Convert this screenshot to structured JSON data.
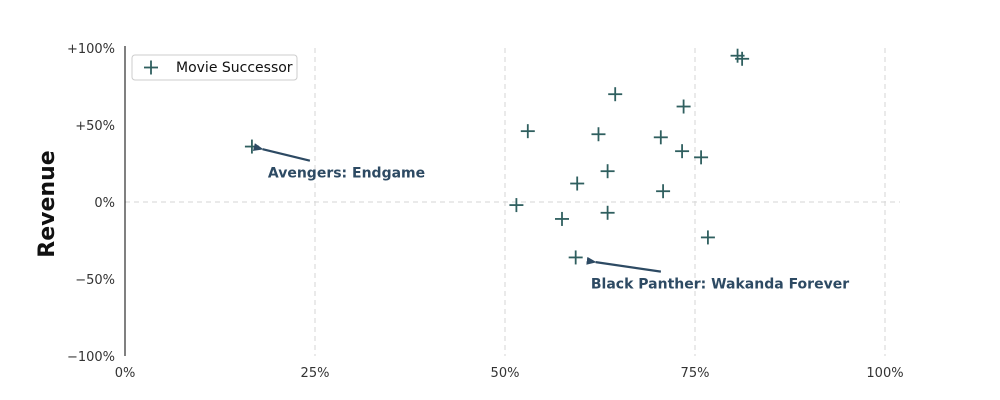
{
  "chart_data": {
    "type": "scatter",
    "title": "",
    "xlabel": "",
    "ylabel": "Revenue",
    "xlim": [
      0,
      1.02
    ],
    "ylim": [
      -1,
      1
    ],
    "x_ticks": [
      0,
      0.25,
      0.5,
      0.75,
      1.0
    ],
    "x_tick_labels": [
      "0%",
      "25%",
      "50%",
      "75%",
      "100%"
    ],
    "y_ticks": [
      -1,
      -0.5,
      0,
      0.5,
      1
    ],
    "y_tick_labels": [
      "−100%",
      "−50%",
      "0%",
      "+50%",
      "+100%"
    ],
    "grid": "x-dashed",
    "zero_line": "dashed",
    "legend": {
      "placement": "top-left",
      "entries": [
        "Movie Successor"
      ]
    },
    "marker": "plus",
    "color": "#2f5f5f",
    "series": [
      {
        "name": "Movie Successor",
        "points": [
          {
            "x": 0.167,
            "y": 0.36
          },
          {
            "x": 0.53,
            "y": 0.46
          },
          {
            "x": 0.515,
            "y": -0.02
          },
          {
            "x": 0.575,
            "y": -0.11
          },
          {
            "x": 0.595,
            "y": 0.12
          },
          {
            "x": 0.593,
            "y": -0.36
          },
          {
            "x": 0.623,
            "y": 0.44
          },
          {
            "x": 0.635,
            "y": 0.2
          },
          {
            "x": 0.635,
            "y": -0.07
          },
          {
            "x": 0.645,
            "y": 0.7
          },
          {
            "x": 0.705,
            "y": 0.42
          },
          {
            "x": 0.708,
            "y": 0.07
          },
          {
            "x": 0.733,
            "y": 0.33
          },
          {
            "x": 0.735,
            "y": 0.62
          },
          {
            "x": 0.758,
            "y": 0.29
          },
          {
            "x": 0.767,
            "y": -0.23
          },
          {
            "x": 0.806,
            "y": 0.95
          },
          {
            "x": 0.812,
            "y": 0.93
          }
        ]
      }
    ],
    "annotations": [
      {
        "text": "Avengers: Endgame",
        "point": {
          "x": 0.167,
          "y": 0.36
        },
        "label_at": {
          "x": 0.188,
          "y": 0.19
        }
      },
      {
        "text": "Black Panther: Wakanda Forever",
        "point": {
          "x": 0.605,
          "y": -0.38
        },
        "label_at": {
          "x": 0.613,
          "y": -0.53
        }
      }
    ],
    "annotation_color": "#2d4a63"
  }
}
